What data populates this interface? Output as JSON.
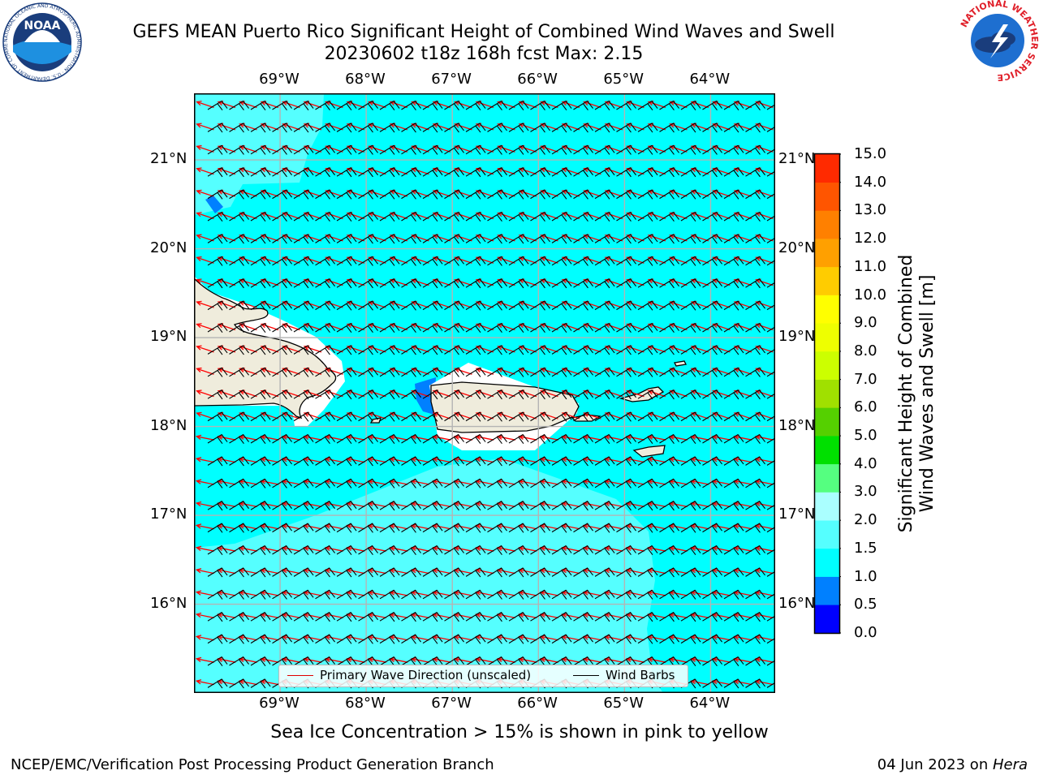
{
  "title": {
    "line1": "GEFS MEAN Puerto Rico Significant Height of Combined Wind Waves and Swell",
    "line2": "20230602 t18z 168h fcst   Max: 2.15"
  },
  "logos": {
    "noaa_text": "NOAA",
    "noaa_ring": "NATIONAL OCEANIC AND ATMOSPHERIC ADMINISTRATION · U.S. DEPARTMENT OF COMMERCE",
    "nws_ring": "NATIONAL WEATHER SERVICE"
  },
  "map": {
    "lon_ticks": [
      "69°W",
      "68°W",
      "67°W",
      "66°W",
      "65°W",
      "64°W"
    ],
    "lat_ticks": [
      "21°N",
      "20°N",
      "19°N",
      "18°N",
      "17°N",
      "16°N"
    ],
    "lon_range": [
      -70.0,
      -63.25
    ],
    "lat_range": [
      15.0,
      21.75
    ],
    "ocean_color": "#00ffff",
    "swell_color": "#55ffff",
    "low_wave_color": "#0080ff",
    "land_color": "#efecdc",
    "wave_arrow_color": "#ff0000",
    "barb_color": "#000000",
    "wave_direction": "from east-southeast",
    "wind": "easterly trade winds"
  },
  "legend": {
    "wave_label": "Primary Wave Direction (unscaled)",
    "barb_label": "Wind Barbs"
  },
  "colorbar": {
    "label_line1": "Significant Height of Combined",
    "label_line2": "Wind Waves and Swell [m]",
    "levels": [
      "0.0",
      "0.5",
      "1.0",
      "1.5",
      "2.0",
      "3.0",
      "4.0",
      "5.0",
      "6.0",
      "7.0",
      "8.0",
      "9.0",
      "10.0",
      "11.0",
      "12.0",
      "13.0",
      "14.0",
      "15.0"
    ],
    "colors": [
      "#0000ff",
      "#0080ff",
      "#00ffff",
      "#55ffff",
      "#aaffff",
      "#55ff80",
      "#00e000",
      "#55d000",
      "#a0e000",
      "#ccff00",
      "#eeff00",
      "#ffff00",
      "#ffcc00",
      "#ffa000",
      "#ff8000",
      "#ff5500",
      "#ff2a00"
    ]
  },
  "notes": {
    "ice": "Sea Ice Concentration > 15% is shown in pink to yellow",
    "footer_left": "NCEP/EMC/Verification Post Processing Product Generation Branch",
    "footer_date": "04 Jun 2023 on ",
    "footer_host": "Hera"
  }
}
